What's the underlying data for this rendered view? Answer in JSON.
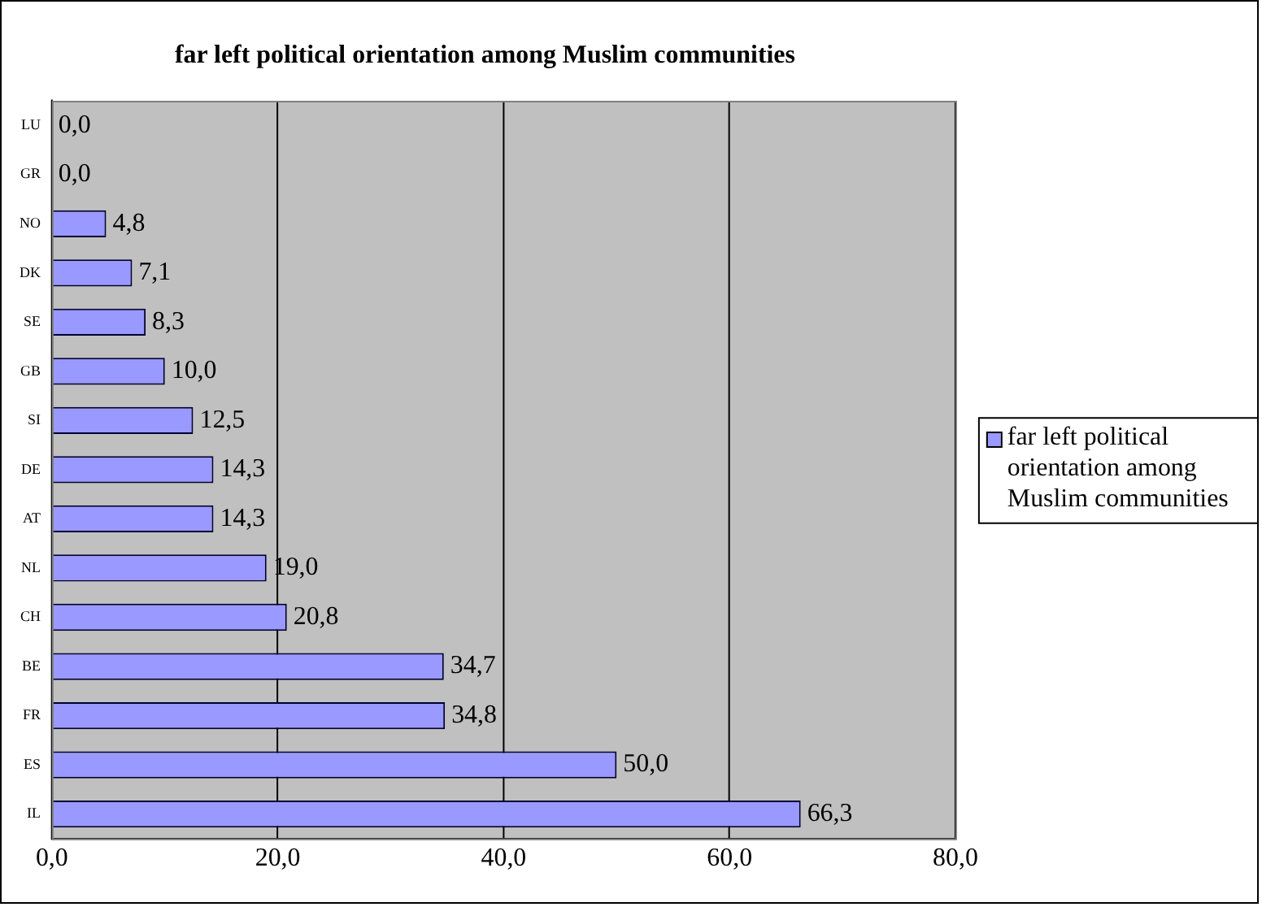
{
  "chart_data": {
    "type": "bar",
    "orientation": "horizontal",
    "title": "far left political orientation among Muslim communities",
    "categories": [
      "LU",
      "GR",
      "NO",
      "DK",
      "SE",
      "GB",
      "SI",
      "DE",
      "AT",
      "NL",
      "CH",
      "BE",
      "FR",
      "ES",
      "IL"
    ],
    "series": [
      {
        "name": "far left political orientation among Muslim communities",
        "color": "#9999ff",
        "values": [
          0.0,
          0.0,
          4.8,
          7.1,
          8.3,
          10.0,
          12.5,
          14.3,
          14.3,
          19.0,
          20.8,
          34.7,
          34.8,
          50.0,
          66.3
        ],
        "value_labels": [
          "0,0",
          "0,0",
          "4,8",
          "7,1",
          "8,3",
          "10,0",
          "12,5",
          "14,3",
          "14,3",
          "19,0",
          "20,8",
          "34,7",
          "34,8",
          "50,0",
          "66,3"
        ]
      }
    ],
    "xlim": [
      0,
      80
    ],
    "xticks": [
      {
        "value": 0,
        "label": "0,0"
      },
      {
        "value": 20,
        "label": "20,0"
      },
      {
        "value": 40,
        "label": "40,0"
      },
      {
        "value": 60,
        "label": "60,0"
      },
      {
        "value": 80,
        "label": "80,0"
      }
    ],
    "grid": "x",
    "legend": "right"
  }
}
